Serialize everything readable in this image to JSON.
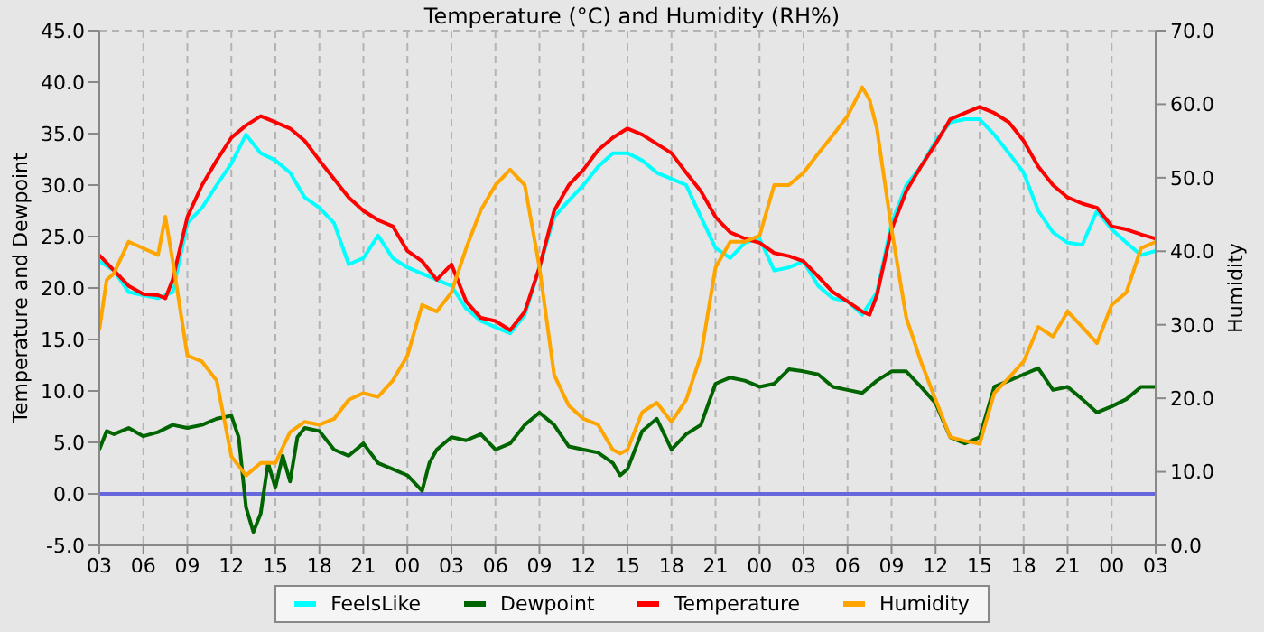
{
  "chart_data": {
    "type": "line",
    "title": "Temperature (°C) and Humidity (RH%)",
    "ylabel": "Temperature and Dewpoint",
    "y2label": "Humidity",
    "xlim": [
      3,
      75
    ],
    "xticks": [
      {
        "value": 3,
        "label": "03"
      },
      {
        "value": 6,
        "label": "06"
      },
      {
        "value": 9,
        "label": "09"
      },
      {
        "value": 12,
        "label": "12"
      },
      {
        "value": 15,
        "label": "15"
      },
      {
        "value": 18,
        "label": "18"
      },
      {
        "value": 21,
        "label": "21"
      },
      {
        "value": 24,
        "label": "00"
      },
      {
        "value": 27,
        "label": "03"
      },
      {
        "value": 30,
        "label": "06"
      },
      {
        "value": 33,
        "label": "09"
      },
      {
        "value": 36,
        "label": "12"
      },
      {
        "value": 39,
        "label": "15"
      },
      {
        "value": 42,
        "label": "18"
      },
      {
        "value": 45,
        "label": "21"
      },
      {
        "value": 48,
        "label": "00"
      },
      {
        "value": 51,
        "label": "03"
      },
      {
        "value": 54,
        "label": "06"
      },
      {
        "value": 57,
        "label": "09"
      },
      {
        "value": 60,
        "label": "12"
      },
      {
        "value": 63,
        "label": "15"
      },
      {
        "value": 66,
        "label": "18"
      },
      {
        "value": 69,
        "label": "21"
      },
      {
        "value": 72,
        "label": "00"
      },
      {
        "value": 75,
        "label": "03"
      }
    ],
    "ylim": [
      -5,
      45
    ],
    "yticks": [
      {
        "value": -5,
        "label": "-5.0"
      },
      {
        "value": 0,
        "label": "0.0"
      },
      {
        "value": 5,
        "label": "5.0"
      },
      {
        "value": 10,
        "label": "10.0"
      },
      {
        "value": 15,
        "label": "15.0"
      },
      {
        "value": 20,
        "label": "20.0"
      },
      {
        "value": 25,
        "label": "25.0"
      },
      {
        "value": 30,
        "label": "30.0"
      },
      {
        "value": 35,
        "label": "35.0"
      },
      {
        "value": 40,
        "label": "40.0"
      },
      {
        "value": 45,
        "label": "45.0"
      }
    ],
    "y2lim": [
      0,
      70
    ],
    "y2ticks": [
      {
        "value": 0,
        "label": "0.0"
      },
      {
        "value": 10,
        "label": "10.0"
      },
      {
        "value": 20,
        "label": "20.0"
      },
      {
        "value": 30,
        "label": "30.0"
      },
      {
        "value": 40,
        "label": "40.0"
      },
      {
        "value": 50,
        "label": "50.0"
      },
      {
        "value": 60,
        "label": "60.0"
      },
      {
        "value": 70,
        "label": "70.0"
      }
    ],
    "grid": true,
    "legend": "bottom",
    "marker": "none",
    "line_style": "solid",
    "ref_lines": [
      {
        "axis": "y",
        "value": 0,
        "color": "#6666dd"
      }
    ],
    "series": [
      {
        "name": "FeelsLike",
        "color": "#00ffff",
        "x": [
          3,
          4,
          5,
          6,
          7,
          8,
          9,
          10,
          11,
          12,
          13,
          14,
          15,
          16,
          17,
          18,
          19,
          20,
          21,
          22,
          23,
          24,
          25,
          26,
          27,
          28,
          29,
          30,
          31,
          32,
          33,
          34,
          35,
          36,
          37,
          38,
          39,
          40,
          41,
          42,
          43,
          44,
          45,
          46,
          47,
          48,
          49,
          50,
          51,
          52,
          53,
          54,
          55,
          56,
          57,
          58,
          59,
          60,
          61,
          62,
          63,
          64,
          65,
          66,
          67,
          68,
          69,
          70,
          71,
          72,
          73,
          74,
          75
        ],
        "values": [
          22.6,
          21.7,
          19.6,
          19.3,
          19.0,
          19.6,
          26.3,
          27.8,
          30.0,
          32.1,
          34.9,
          33.1,
          32.4,
          31.2,
          28.8,
          27.8,
          26.3,
          22.3,
          22.9,
          25.1,
          22.9,
          22.0,
          21.4,
          20.8,
          20.2,
          18.0,
          16.8,
          16.2,
          15.6,
          17.4,
          22.0,
          26.9,
          28.5,
          30.0,
          31.8,
          33.1,
          33.1,
          32.4,
          31.2,
          30.6,
          30.0,
          26.9,
          23.9,
          22.9,
          24.4,
          24.8,
          21.7,
          22.0,
          22.6,
          20.2,
          19.0,
          18.7,
          17.4,
          19.6,
          26.3,
          30.0,
          31.8,
          34.3,
          36.1,
          36.4,
          36.4,
          34.9,
          33.1,
          31.2,
          27.5,
          25.4,
          24.4,
          24.2,
          27.5,
          25.7,
          24.4,
          23.2,
          23.6
        ]
      },
      {
        "name": "Dewpoint",
        "color": "#006400",
        "x": [
          3,
          3.5,
          4,
          5,
          6,
          7,
          8,
          9,
          10,
          11,
          12,
          12.5,
          13,
          13.5,
          14,
          14.5,
          15,
          15.5,
          16,
          16.5,
          17,
          18,
          19,
          20,
          21,
          22,
          23,
          24,
          25,
          25.5,
          26,
          27,
          28,
          29,
          30,
          31,
          32,
          33,
          34,
          35,
          36,
          37,
          38,
          38.5,
          39,
          40,
          41,
          42,
          43,
          44,
          45,
          46,
          47,
          48,
          49,
          50,
          51,
          52,
          53,
          54,
          55,
          56,
          57,
          58,
          59,
          60,
          61,
          62,
          63,
          64,
          65,
          66,
          67,
          68,
          69,
          70,
          71,
          72,
          73,
          74,
          75
        ],
        "values": [
          4.3,
          6.1,
          5.8,
          6.4,
          5.6,
          6.0,
          6.7,
          6.4,
          6.7,
          7.3,
          7.6,
          5.5,
          -1.3,
          -3.7,
          -1.9,
          3.0,
          0.6,
          3.7,
          1.2,
          5.5,
          6.4,
          6.1,
          4.3,
          3.7,
          4.9,
          3.0,
          2.4,
          1.8,
          0.3,
          3.0,
          4.3,
          5.5,
          5.2,
          5.8,
          4.3,
          4.9,
          6.7,
          7.9,
          6.7,
          4.6,
          4.3,
          4.0,
          3.0,
          1.8,
          2.4,
          6.1,
          7.3,
          4.3,
          5.8,
          6.7,
          10.7,
          11.3,
          11.0,
          10.4,
          10.7,
          12.1,
          11.9,
          11.6,
          10.4,
          10.1,
          9.8,
          11.0,
          11.9,
          11.9,
          10.4,
          8.8,
          5.5,
          4.9,
          5.5,
          10.4,
          11.0,
          11.6,
          12.2,
          10.1,
          10.4,
          9.2,
          7.9,
          8.5,
          9.2,
          10.4,
          10.4
        ]
      },
      {
        "name": "Temperature",
        "color": "#ff0000",
        "x": [
          3,
          4,
          5,
          6,
          7,
          7.5,
          8,
          9,
          10,
          11,
          12,
          13,
          14,
          15,
          16,
          17,
          18,
          19,
          20,
          21,
          22,
          23,
          24,
          25,
          26,
          27,
          28,
          29,
          30,
          31,
          32,
          33,
          34,
          35,
          36,
          37,
          38,
          39,
          40,
          41,
          42,
          43,
          44,
          45,
          46,
          47,
          48,
          49,
          50,
          51,
          52,
          53,
          54,
          55,
          55.5,
          56,
          57,
          58,
          59,
          60,
          61,
          62,
          63,
          64,
          65,
          66,
          67,
          68,
          69,
          70,
          71,
          72,
          73,
          74,
          75
        ],
        "values": [
          23.2,
          21.7,
          20.2,
          19.4,
          19.3,
          19.0,
          20.8,
          26.9,
          30.0,
          32.4,
          34.6,
          35.8,
          36.7,
          36.1,
          35.5,
          34.3,
          32.4,
          30.6,
          28.8,
          27.5,
          26.6,
          26.0,
          23.6,
          22.6,
          20.8,
          22.3,
          18.7,
          17.1,
          16.8,
          15.9,
          17.7,
          22.0,
          27.5,
          30.0,
          31.5,
          33.4,
          34.6,
          35.5,
          34.9,
          34.0,
          33.1,
          31.2,
          29.4,
          26.9,
          25.4,
          24.8,
          24.4,
          23.4,
          23.1,
          22.6,
          21.1,
          19.6,
          18.7,
          17.7,
          17.4,
          19.3,
          25.7,
          29.4,
          31.8,
          34.0,
          36.4,
          37.0,
          37.6,
          37.0,
          36.1,
          34.3,
          31.8,
          30.0,
          28.8,
          28.2,
          27.8,
          26.0,
          25.7,
          25.2,
          24.8
        ]
      },
      {
        "name": "Humidity",
        "color": "#ffa500",
        "axis": "y2",
        "x": [
          3,
          3.5,
          4,
          5,
          6,
          7,
          7.5,
          8,
          9,
          10,
          11,
          12,
          13,
          14,
          15,
          16,
          17,
          18,
          19,
          20,
          21,
          22,
          23,
          24,
          25,
          26,
          27,
          28,
          29,
          30,
          31,
          32,
          33,
          34,
          35,
          36,
          37,
          38,
          38.5,
          39,
          40,
          41,
          42,
          43,
          44,
          45,
          46,
          47,
          48,
          49,
          50,
          51,
          52,
          53,
          54,
          55,
          55.5,
          56,
          57,
          58,
          59,
          60,
          61,
          62,
          63,
          64,
          65,
          66,
          67,
          68,
          69,
          70,
          71,
          72,
          73,
          74,
          75
        ],
        "values": [
          29.3,
          36.1,
          37.0,
          41.3,
          40.4,
          39.5,
          44.7,
          38.7,
          25.8,
          25.0,
          22.4,
          12.1,
          9.5,
          11.2,
          11.2,
          15.4,
          16.8,
          16.4,
          17.2,
          19.8,
          20.7,
          20.2,
          22.4,
          25.8,
          32.7,
          31.8,
          34.4,
          40.4,
          45.6,
          49.0,
          51.1,
          49.0,
          37.8,
          23.2,
          19.0,
          17.2,
          16.4,
          13.0,
          12.5,
          13.0,
          18.1,
          19.4,
          16.8,
          19.8,
          25.8,
          37.8,
          41.3,
          41.3,
          42.1,
          49.0,
          49.0,
          50.7,
          53.3,
          55.8,
          58.4,
          62.3,
          60.6,
          56.7,
          43.0,
          31.0,
          25.0,
          19.8,
          14.7,
          14.2,
          13.8,
          20.7,
          22.8,
          25.0,
          29.7,
          28.4,
          31.8,
          29.7,
          27.5,
          32.7,
          34.4,
          40.4,
          41.3
        ]
      }
    ]
  }
}
